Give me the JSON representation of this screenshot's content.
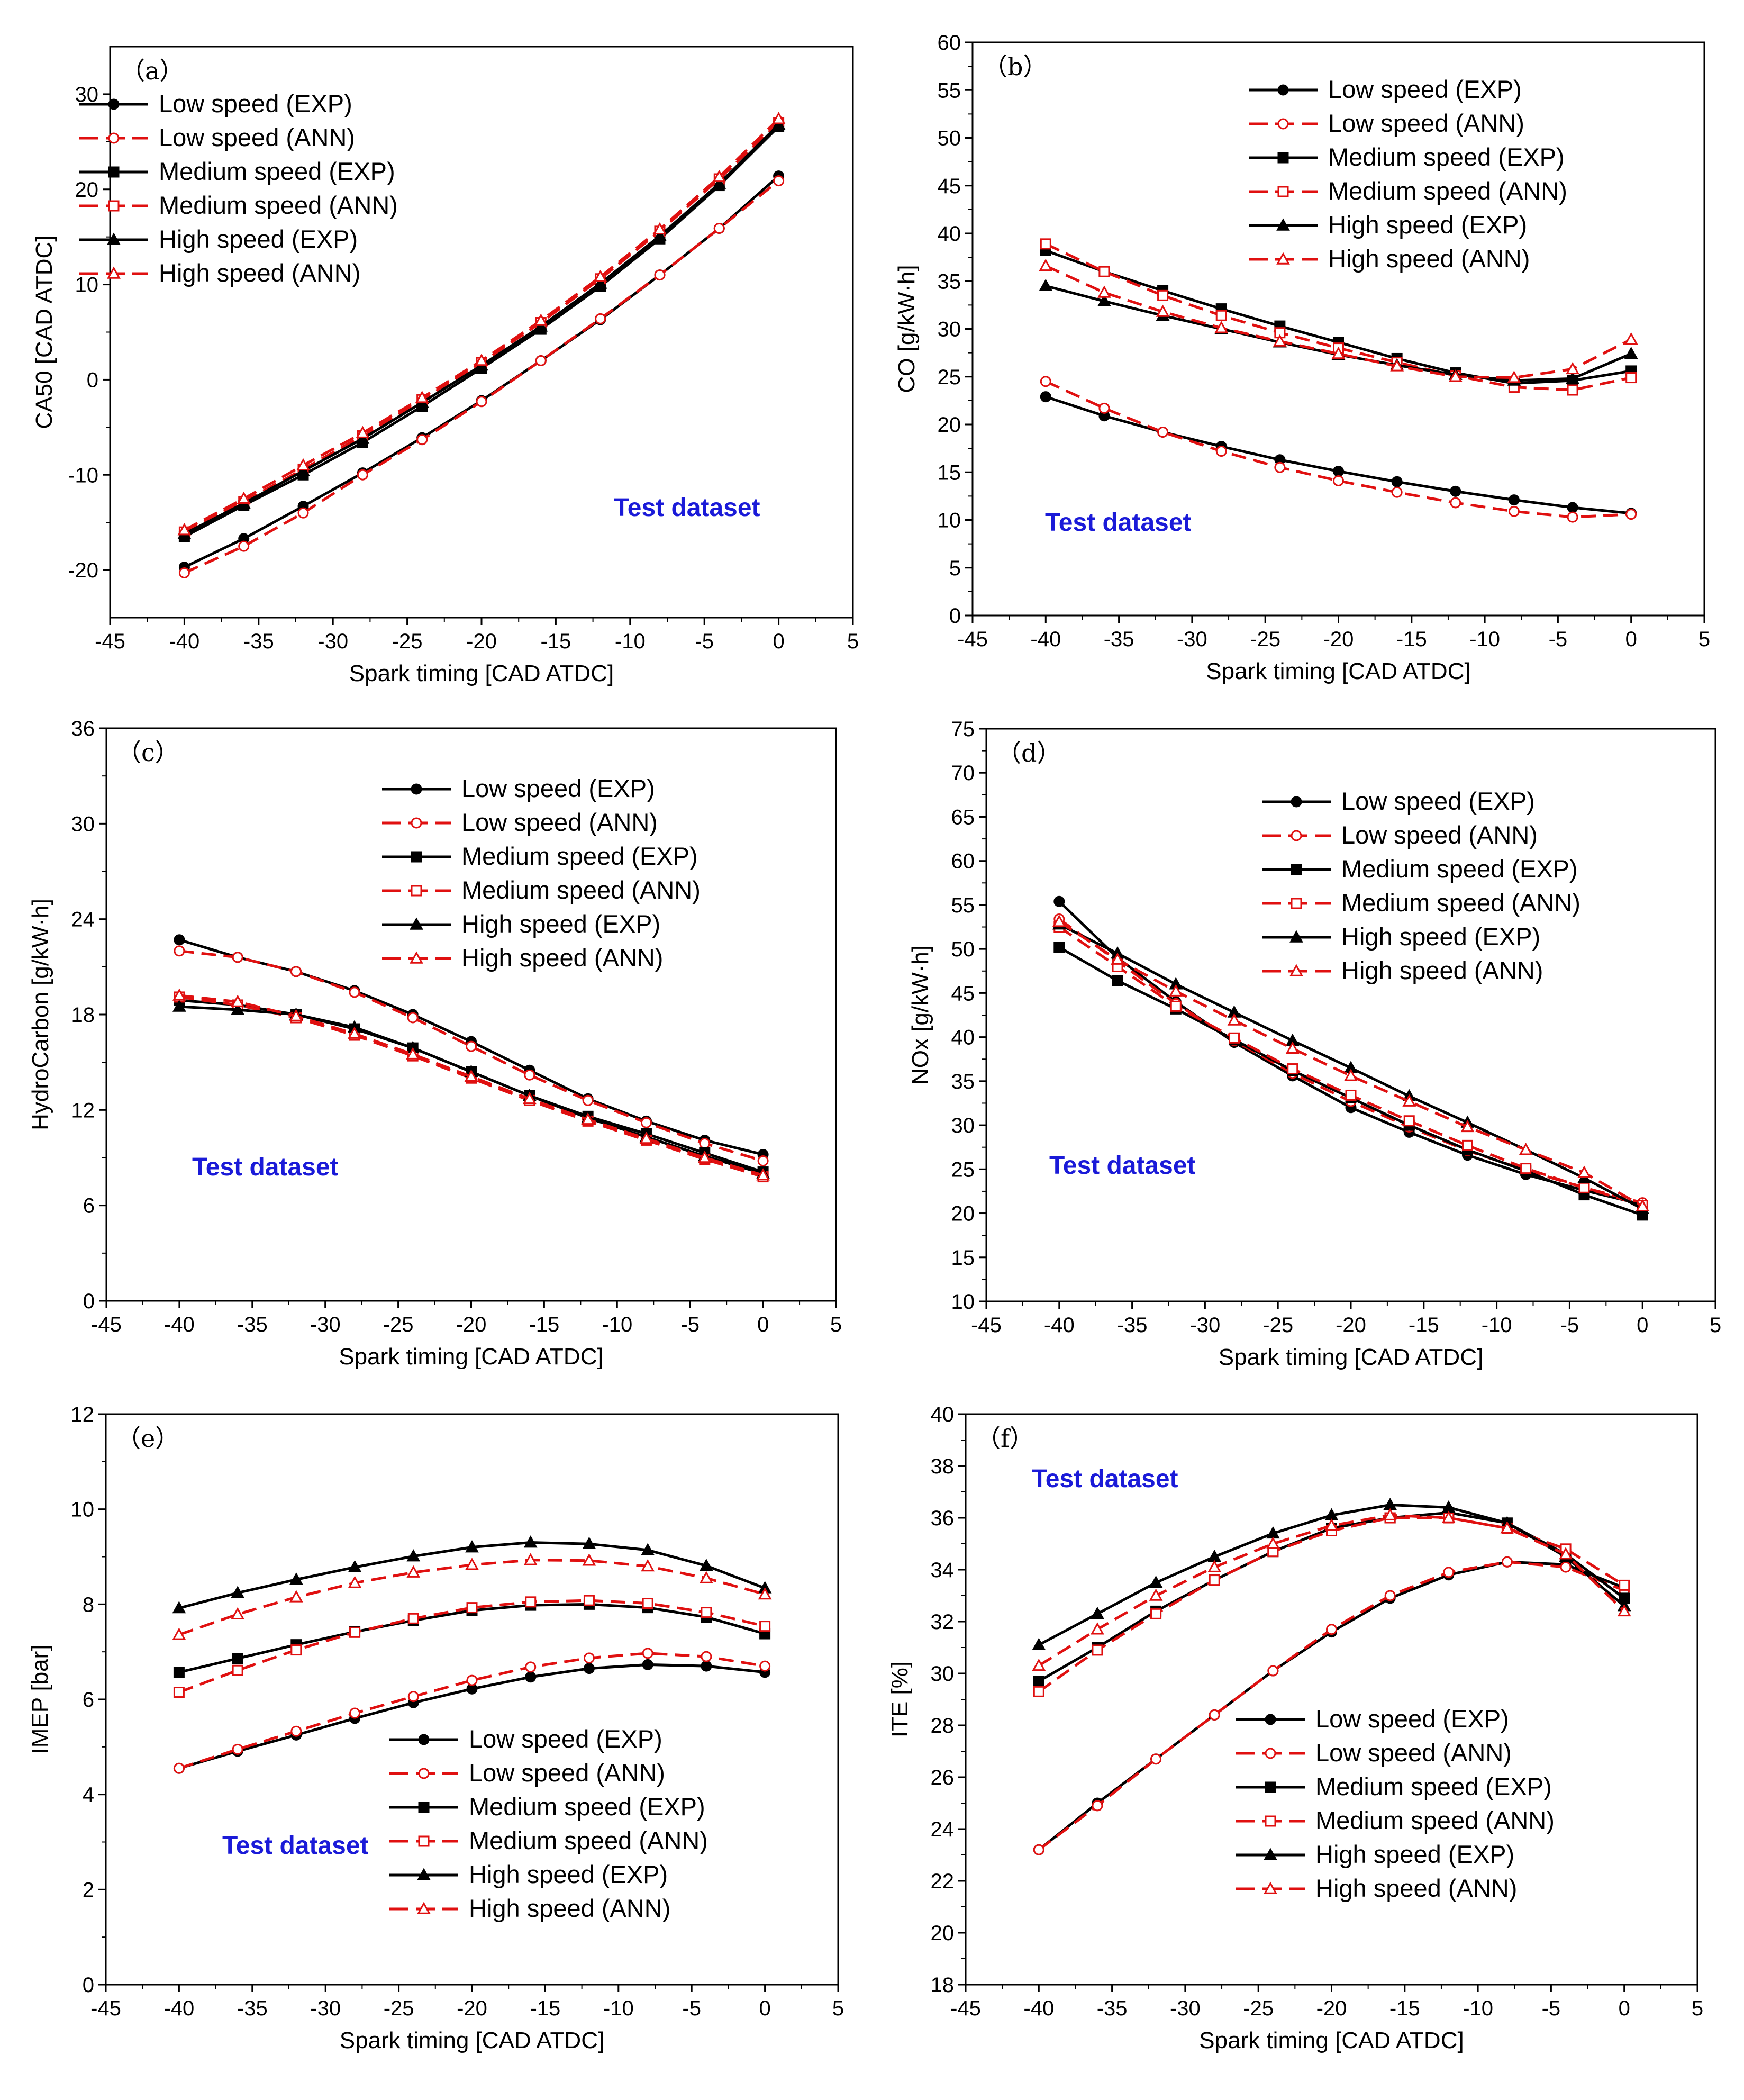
{
  "chart_data": [
    {
      "type": "line",
      "panel_label": "（a）",
      "xlabel": "Spark timing [CAD ATDC]",
      "ylabel": "CA50 [CAD ATDC]",
      "xlim": [
        -45,
        5
      ],
      "ylim": [
        -25,
        35
      ],
      "xticks": [
        -45,
        -40,
        -35,
        -30,
        -25,
        -20,
        -15,
        -10,
        -5,
        0,
        5
      ],
      "yticks": [
        -20,
        -10,
        0,
        10,
        20,
        30
      ],
      "annotation": "Test dataset",
      "legend": [
        "Low speed (EXP)",
        "Low speed (ANN)",
        "Medium speed (EXP)",
        "Medium speed (ANN)",
        "High speed (EXP)",
        "High speed (ANN)"
      ],
      "x": [
        -40,
        -36,
        -32,
        -28,
        -24,
        -20,
        -16,
        -12,
        -8,
        -4,
        0
      ],
      "series": [
        {
          "name": "Low speed (EXP)",
          "values": [
            -19.7,
            -16.7,
            -13.3,
            -9.8,
            -6.1,
            -2.2,
            2.0,
            6.3,
            11.0,
            15.9,
            21.4
          ]
        },
        {
          "name": "Low speed (ANN)",
          "values": [
            -20.3,
            -17.5,
            -14.0,
            -10.0,
            -6.3,
            -2.3,
            2.0,
            6.4,
            11.0,
            15.9,
            20.9
          ]
        },
        {
          "name": "Medium speed (EXP)",
          "values": [
            -16.5,
            -13.2,
            -10.0,
            -6.6,
            -2.8,
            1.2,
            5.3,
            9.8,
            14.8,
            20.4,
            26.6
          ]
        },
        {
          "name": "Medium speed (ANN)",
          "values": [
            -16.0,
            -12.8,
            -9.4,
            -5.9,
            -2.1,
            1.8,
            6.0,
            10.6,
            15.6,
            21.1,
            27.0
          ]
        },
        {
          "name": "High speed (EXP)",
          "values": [
            -16.2,
            -13.0,
            -9.6,
            -6.2,
            -2.4,
            1.5,
            5.6,
            10.1,
            15.1,
            20.6,
            26.8
          ]
        },
        {
          "name": "High speed (ANN)",
          "values": [
            -15.8,
            -12.5,
            -9.0,
            -5.6,
            -1.9,
            2.0,
            6.2,
            10.8,
            15.8,
            21.3,
            27.4
          ]
        }
      ]
    },
    {
      "type": "line",
      "panel_label": "（b）",
      "xlabel": "Spark timing [CAD ATDC]",
      "ylabel": "CO [g/kW·h]",
      "xlim": [
        -45,
        5
      ],
      "ylim": [
        0,
        60
      ],
      "xticks": [
        -45,
        -40,
        -35,
        -30,
        -25,
        -20,
        -15,
        -10,
        -5,
        0,
        5
      ],
      "yticks": [
        0,
        5,
        10,
        15,
        20,
        25,
        30,
        35,
        40,
        45,
        50,
        55,
        60
      ],
      "annotation": "Test dataset",
      "legend": [
        "Low speed (EXP)",
        "Low speed (ANN)",
        "Medium speed (EXP)",
        "Medium speed (ANN)",
        "High speed (EXP)",
        "High speed (ANN)"
      ],
      "x": [
        -40,
        -36,
        -32,
        -28,
        -24,
        -20,
        -16,
        -12,
        -8,
        -4,
        0
      ],
      "series": [
        {
          "name": "Low speed (EXP)",
          "values": [
            22.9,
            20.9,
            19.2,
            17.7,
            16.3,
            15.1,
            14.0,
            13.0,
            12.1,
            11.3,
            10.7
          ]
        },
        {
          "name": "Low speed (ANN)",
          "values": [
            24.5,
            21.7,
            19.2,
            17.2,
            15.5,
            14.1,
            12.9,
            11.8,
            10.9,
            10.3,
            10.6
          ]
        },
        {
          "name": "Medium speed (EXP)",
          "values": [
            38.2,
            36.0,
            34.0,
            32.1,
            30.3,
            28.6,
            26.9,
            25.4,
            24.3,
            24.6,
            25.6
          ]
        },
        {
          "name": "Medium speed (ANN)",
          "values": [
            38.9,
            36.0,
            33.5,
            31.4,
            29.6,
            28.0,
            26.5,
            25.1,
            23.9,
            23.6,
            24.9
          ]
        },
        {
          "name": "High speed (EXP)",
          "values": [
            34.5,
            32.9,
            31.4,
            30.0,
            28.6,
            27.3,
            26.2,
            25.2,
            24.6,
            24.8,
            27.4
          ]
        },
        {
          "name": "High speed (ANN)",
          "values": [
            36.6,
            33.8,
            31.8,
            30.1,
            28.7,
            27.4,
            26.1,
            25.0,
            24.9,
            25.8,
            28.9
          ]
        }
      ]
    },
    {
      "type": "line",
      "panel_label": "（c）",
      "xlabel": "Spark timing [CAD ATDC]",
      "ylabel": "HydroCarbon [g/kW·h]",
      "xlim": [
        -45,
        5
      ],
      "ylim": [
        0,
        36
      ],
      "xticks": [
        -45,
        -40,
        -35,
        -30,
        -25,
        -20,
        -15,
        -10,
        -5,
        0,
        5
      ],
      "yticks": [
        0,
        6,
        12,
        18,
        24,
        30,
        36
      ],
      "annotation": "Test dataset",
      "legend": [
        "Low speed (EXP)",
        "Low speed (ANN)",
        "Medium speed (EXP)",
        "Medium speed (ANN)",
        "High speed (EXP)",
        "High speed (ANN)"
      ],
      "x": [
        -40,
        -36,
        -32,
        -28,
        -24,
        -20,
        -16,
        -12,
        -8,
        -4,
        0
      ],
      "series": [
        {
          "name": "Low speed (EXP)",
          "values": [
            22.7,
            21.6,
            20.7,
            19.5,
            18.0,
            16.3,
            14.5,
            12.7,
            11.3,
            10.1,
            9.2
          ]
        },
        {
          "name": "Low speed (ANN)",
          "values": [
            22.0,
            21.6,
            20.7,
            19.4,
            17.8,
            16.0,
            14.2,
            12.6,
            11.2,
            9.9,
            8.8
          ]
        },
        {
          "name": "Medium speed (EXP)",
          "values": [
            18.9,
            18.6,
            18.0,
            17.1,
            15.9,
            14.4,
            12.9,
            11.6,
            10.5,
            9.3,
            8.1
          ]
        },
        {
          "name": "Medium speed (ANN)",
          "values": [
            19.1,
            18.6,
            17.8,
            16.7,
            15.4,
            14.0,
            12.6,
            11.3,
            10.1,
            8.9,
            7.8
          ]
        },
        {
          "name": "High speed (EXP)",
          "values": [
            18.5,
            18.3,
            18.0,
            17.2,
            15.9,
            14.4,
            12.9,
            11.5,
            10.3,
            9.1,
            8.0
          ]
        },
        {
          "name": "High speed (ANN)",
          "values": [
            19.2,
            18.8,
            17.9,
            16.8,
            15.5,
            14.1,
            12.7,
            11.4,
            10.2,
            9.0,
            7.9
          ]
        }
      ]
    },
    {
      "type": "line",
      "panel_label": "（d）",
      "xlabel": "Spark timing [CAD ATDC]",
      "ylabel": "NOx [g/kW·h]",
      "xlim": [
        -45,
        5
      ],
      "ylim": [
        10,
        75
      ],
      "xticks": [
        -45,
        -40,
        -35,
        -30,
        -25,
        -20,
        -15,
        -10,
        -5,
        0,
        5
      ],
      "yticks": [
        10,
        15,
        20,
        25,
        30,
        35,
        40,
        45,
        50,
        55,
        60,
        65,
        70,
        75
      ],
      "annotation": "Test dataset",
      "legend": [
        "Low speed (EXP)",
        "Low speed (ANN)",
        "Medium speed (EXP)",
        "Medium speed (ANN)",
        "High speed (EXP)",
        "High speed (ANN)"
      ],
      "x": [
        -40,
        -36,
        -32,
        -28,
        -24,
        -20,
        -16,
        -12,
        -8,
        -4,
        0
      ],
      "series": [
        {
          "name": "Low speed (EXP)",
          "values": [
            55.4,
            49.0,
            44.0,
            39.4,
            35.6,
            32.0,
            29.2,
            26.6,
            24.4,
            22.6,
            21.0
          ]
        },
        {
          "name": "Low speed (ANN)",
          "values": [
            53.4,
            48.6,
            43.8,
            39.6,
            35.9,
            32.7,
            29.8,
            27.1,
            24.9,
            22.9,
            21.2
          ]
        },
        {
          "name": "Medium speed (EXP)",
          "values": [
            50.2,
            46.4,
            43.2,
            39.7,
            36.2,
            33.1,
            30.0,
            27.2,
            24.8,
            22.1,
            19.8
          ]
        },
        {
          "name": "Medium speed (ANN)",
          "values": [
            52.5,
            48.0,
            43.5,
            39.9,
            36.4,
            33.4,
            30.5,
            27.7,
            25.1,
            22.9,
            20.9
          ]
        },
        {
          "name": "High speed (EXP)",
          "values": [
            52.8,
            49.5,
            46.0,
            42.8,
            39.6,
            36.5,
            33.3,
            30.3,
            27.2,
            24.0,
            20.5
          ]
        },
        {
          "name": "High speed (ANN)",
          "values": [
            53.1,
            48.8,
            45.2,
            41.9,
            38.7,
            35.6,
            32.7,
            29.8,
            27.2,
            24.6,
            20.8
          ]
        }
      ]
    },
    {
      "type": "line",
      "panel_label": "（e）",
      "xlabel": "Spark timing [CAD ATDC]",
      "ylabel": "IMEP [bar]",
      "xlim": [
        -45,
        5
      ],
      "ylim": [
        0,
        12
      ],
      "xticks": [
        -45,
        -40,
        -35,
        -30,
        -25,
        -20,
        -15,
        -10,
        -5,
        0,
        5
      ],
      "yticks": [
        0,
        2,
        4,
        6,
        8,
        10,
        12
      ],
      "annotation": "Test dataset",
      "legend": [
        "Low speed (EXP)",
        "Low speed (ANN)",
        "Medium speed (EXP)",
        "Medium speed (ANN)",
        "High speed (EXP)",
        "High speed (ANN)"
      ],
      "x": [
        -40,
        -36,
        -32,
        -28,
        -24,
        -20,
        -16,
        -12,
        -8,
        -4,
        0
      ],
      "series": [
        {
          "name": "Low speed (EXP)",
          "values": [
            4.55,
            4.91,
            5.25,
            5.6,
            5.93,
            6.22,
            6.47,
            6.65,
            6.73,
            6.7,
            6.57
          ]
        },
        {
          "name": "Low speed (ANN)",
          "values": [
            4.55,
            4.95,
            5.33,
            5.71,
            6.06,
            6.4,
            6.68,
            6.87,
            6.97,
            6.9,
            6.7
          ]
        },
        {
          "name": "Medium speed (EXP)",
          "values": [
            6.57,
            6.86,
            7.15,
            7.42,
            7.66,
            7.87,
            7.98,
            8.0,
            7.93,
            7.73,
            7.38
          ]
        },
        {
          "name": "Medium speed (ANN)",
          "values": [
            6.15,
            6.61,
            7.04,
            7.41,
            7.7,
            7.93,
            8.05,
            8.08,
            8.02,
            7.83,
            7.54
          ]
        },
        {
          "name": "High speed (EXP)",
          "values": [
            7.92,
            8.24,
            8.52,
            8.78,
            9.01,
            9.2,
            9.3,
            9.27,
            9.14,
            8.81,
            8.34
          ]
        },
        {
          "name": "High speed (ANN)",
          "values": [
            7.36,
            7.79,
            8.15,
            8.45,
            8.67,
            8.83,
            8.93,
            8.92,
            8.8,
            8.55,
            8.21
          ]
        }
      ]
    },
    {
      "type": "line",
      "panel_label": "（f）",
      "xlabel": "Spark timing [CAD ATDC]",
      "ylabel": "ITE [%]",
      "xlim": [
        -45,
        5
      ],
      "ylim": [
        18,
        40
      ],
      "xticks": [
        -45,
        -40,
        -35,
        -30,
        -25,
        -20,
        -15,
        -10,
        -5,
        0,
        5
      ],
      "yticks": [
        18,
        20,
        22,
        24,
        26,
        28,
        30,
        32,
        34,
        36,
        38,
        40
      ],
      "annotation": "Test dataset",
      "legend": [
        "Low speed (EXP)",
        "Low speed (ANN)",
        "Medium speed (EXP)",
        "Medium speed (ANN)",
        "High speed (EXP)",
        "High speed (ANN)"
      ],
      "x": [
        -40,
        -36,
        -32,
        -28,
        -24,
        -20,
        -16,
        -12,
        -8,
        -4,
        0
      ],
      "series": [
        {
          "name": "Low speed (EXP)",
          "values": [
            23.2,
            25.0,
            26.7,
            28.4,
            30.1,
            31.6,
            32.9,
            33.8,
            34.3,
            34.2,
            33.3
          ]
        },
        {
          "name": "Low speed (ANN)",
          "values": [
            23.2,
            24.9,
            26.7,
            28.4,
            30.1,
            31.7,
            33.0,
            33.9,
            34.3,
            34.1,
            33.2
          ]
        },
        {
          "name": "Medium speed (EXP)",
          "values": [
            29.7,
            31.0,
            32.4,
            33.6,
            34.7,
            35.6,
            36.0,
            36.2,
            35.8,
            34.6,
            32.9
          ]
        },
        {
          "name": "Medium speed (ANN)",
          "values": [
            29.3,
            30.9,
            32.3,
            33.6,
            34.7,
            35.5,
            36.0,
            36.0,
            35.6,
            34.8,
            33.4
          ]
        },
        {
          "name": "High speed (EXP)",
          "values": [
            31.1,
            32.3,
            33.5,
            34.5,
            35.4,
            36.1,
            36.5,
            36.4,
            35.8,
            34.5,
            32.6
          ]
        },
        {
          "name": "High speed (ANN)",
          "values": [
            30.3,
            31.7,
            33.0,
            34.1,
            35.0,
            35.7,
            36.1,
            36.0,
            35.6,
            34.6,
            32.4
          ]
        }
      ]
    }
  ]
}
